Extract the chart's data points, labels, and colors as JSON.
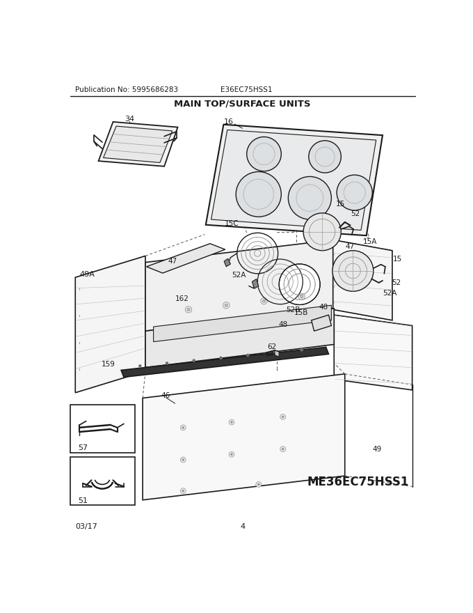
{
  "title": "MAIN TOP/SURFACE UNITS",
  "pub_no": "Publication No: 5995686283",
  "model": "E36EC75HSS1",
  "model_large": "ME36EC75HSS1",
  "date": "03/17",
  "page": "4",
  "bg_color": "#ffffff",
  "line_color": "#1a1a1a",
  "gray_color": "#777777",
  "light_gray": "#bbbbbb",
  "med_gray": "#999999"
}
